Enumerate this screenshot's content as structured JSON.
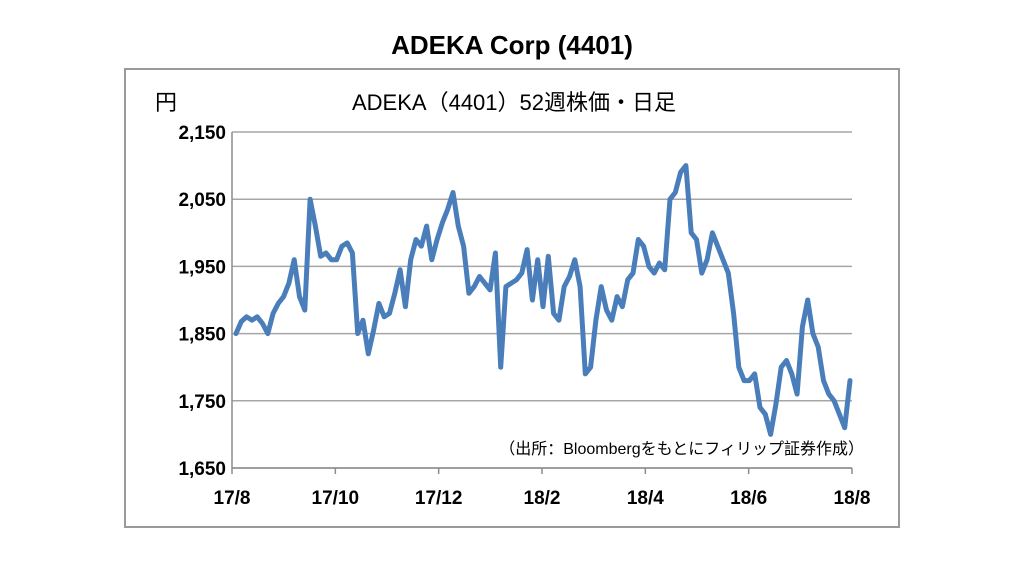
{
  "page_title": "ADEKA Corp (4401)",
  "chart_data": {
    "type": "line",
    "title": "ADEKA（4401）52週株価・日足",
    "ylabel": "円",
    "xlabel": "",
    "ylim": [
      1650,
      2150
    ],
    "yticks": [
      "2,150",
      "2,050",
      "1,950",
      "1,850",
      "1,750",
      "1,650"
    ],
    "ytick_values": [
      2150,
      2050,
      1950,
      1850,
      1750,
      1650
    ],
    "xticks": [
      "17/8",
      "17/10",
      "17/12",
      "18/2",
      "18/4",
      "18/6",
      "18/8"
    ],
    "grid": true,
    "line_color": "#4a7ebb",
    "grid_color": "#a6a6a6",
    "source_note": "（出所：Bloombergをもとにフィリップ証券作成）",
    "series": [
      {
        "values": [
          1850,
          1868,
          1875,
          1870,
          1875,
          1865,
          1850,
          1880,
          1895,
          1905,
          1925,
          1960,
          1905,
          1885,
          2050,
          2010,
          1965,
          1970,
          1960,
          1960,
          1980,
          1985,
          1970,
          1850,
          1870,
          1820,
          1855,
          1895,
          1875,
          1880,
          1910,
          1945,
          1890,
          1960,
          1990,
          1980,
          2010,
          1960,
          1990,
          2015,
          2035,
          2060,
          2010,
          1980,
          1910,
          1920,
          1935,
          1925,
          1915,
          1970,
          1800,
          1920,
          1925,
          1930,
          1940,
          1975,
          1900,
          1960,
          1890,
          1965,
          1880,
          1870,
          1920,
          1935,
          1960,
          1920,
          1790,
          1800,
          1870,
          1920,
          1885,
          1870,
          1905,
          1890,
          1930,
          1940,
          1990,
          1980,
          1950,
          1940,
          1955,
          1945,
          2050,
          2060,
          2090,
          2100,
          2000,
          1990,
          1940,
          1960,
          2000,
          1980,
          1960,
          1940,
          1880,
          1800,
          1780,
          1780,
          1790,
          1740,
          1730,
          1700,
          1745,
          1800,
          1810,
          1790,
          1760,
          1860,
          1900,
          1850,
          1830,
          1780,
          1760,
          1750,
          1730,
          1710,
          1780
        ]
      }
    ]
  }
}
